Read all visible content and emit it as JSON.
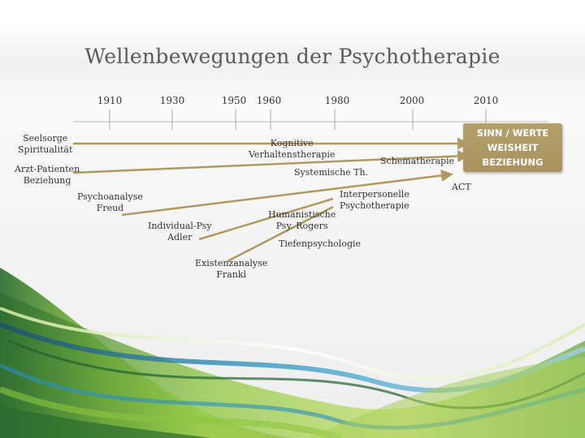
{
  "title": "Wellenbewegungen der Psychotherapie",
  "years": [
    "1910",
    "1930",
    "1950",
    "1960",
    "1980",
    "2000",
    "2010"
  ],
  "labels": {
    "seelsorge": [
      "Seelsorge",
      "Spiritualität"
    ],
    "arzt": [
      "Arzt-Patienten",
      "Beziehung"
    ],
    "psychoanalyse": [
      "Psychoanalyse",
      "Freud"
    ],
    "individual": [
      "Individual-Psy",
      "Adler"
    ],
    "existenz": [
      "Existenzanalyse",
      "Frankl"
    ],
    "kognitive": [
      "Kognitive",
      "Verhaltenstherapie"
    ],
    "systemische": "Systemische Th.",
    "schema": "Schematherapie",
    "interpersonelle": [
      "Interpersonelle",
      "Psychotherapie"
    ],
    "humanistische": [
      "Humanistische",
      "Psy. Rogers"
    ],
    "tiefen": "Tiefenpsychologie",
    "act": "ACT"
  },
  "callout": [
    "SINN / WERTE",
    "WEISHEIT",
    "BEZIEHUNG"
  ],
  "colors": {
    "arrow": "#b09a62",
    "callout": "#ab9662",
    "wave_green": "#7fb83a",
    "wave_dark": "#1f5f2d",
    "wave_blue": "#2a8fbf"
  }
}
